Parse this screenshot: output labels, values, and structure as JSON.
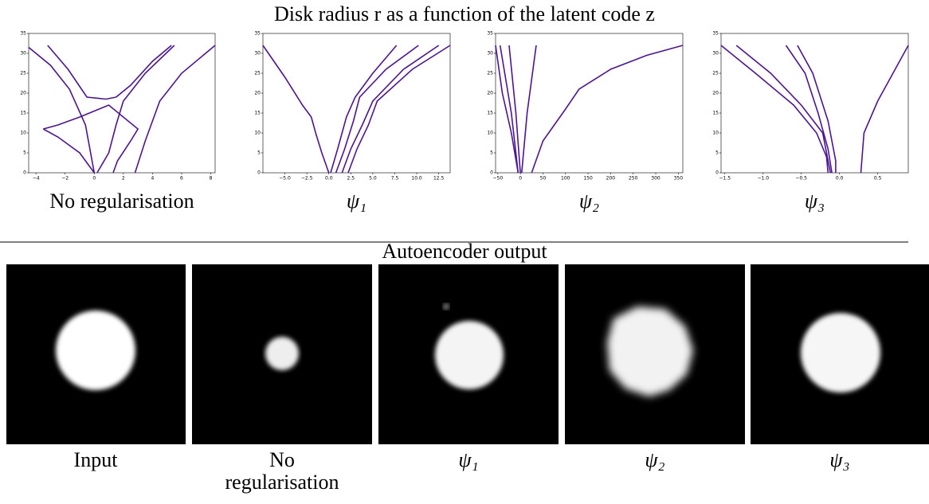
{
  "title": "Disk radius r as a function of the latent code z",
  "chart_data": [
    {
      "type": "line",
      "caption": "No regularisation",
      "color": "#4b1590",
      "xlim": [
        -4.5,
        8.3
      ],
      "ylim": [
        0,
        35
      ],
      "xticks": [
        {
          "value": -4,
          "label": "−4"
        },
        {
          "value": -2,
          "label": "−2"
        },
        0,
        2,
        4,
        6,
        8
      ],
      "yticks": [
        0,
        5,
        10,
        15,
        20,
        25,
        30,
        35
      ],
      "series": [
        {
          "x": [
            -4.5,
            -3,
            -1.7,
            -0.6,
            0
          ],
          "values": [
            31.5,
            27,
            21,
            12,
            0
          ]
        },
        {
          "x": [
            -3.2,
            -1.8,
            -0.5,
            0.8,
            1.5
          ],
          "values": [
            32,
            26,
            19,
            18.5,
            19
          ]
        },
        {
          "x": [
            -3.5,
            -2.5,
            -1,
            1,
            3,
            2.5,
            1.6,
            1.3
          ],
          "values": [
            11,
            12,
            14,
            17,
            11,
            8,
            3,
            0
          ]
        },
        {
          "x": [
            0,
            -1,
            -2.5,
            -3.5
          ],
          "values": [
            0,
            5,
            9,
            11
          ]
        },
        {
          "x": [
            0.2,
            1,
            1.5,
            2,
            3.5,
            5.5
          ],
          "values": [
            0,
            5,
            12,
            18,
            25,
            32
          ]
        },
        {
          "x": [
            1.5,
            2.5,
            4,
            5.3
          ],
          "values": [
            19,
            22,
            28,
            32
          ]
        },
        {
          "x": [
            2.8,
            3.5,
            4.5,
            6,
            8.3
          ],
          "values": [
            0,
            8,
            18,
            25,
            32
          ]
        }
      ]
    },
    {
      "type": "line",
      "caption": "ψ₁",
      "color": "#4b1590",
      "xlim": [
        -7.5,
        13.8
      ],
      "ylim": [
        0,
        35
      ],
      "xticks": [
        {
          "value": -5,
          "label": "−5.0"
        },
        {
          "value": -2.5,
          "label": "−2.5"
        },
        {
          "value": 0,
          "label": "0.0"
        },
        2.5,
        {
          "value": 5,
          "label": "5.0"
        },
        7.5,
        {
          "value": 10,
          "label": "10.0"
        },
        12.5
      ],
      "yticks": [
        0,
        5,
        10,
        15,
        20,
        25,
        30,
        35
      ],
      "series": [
        {
          "x": [
            -7.5,
            -5,
            -3,
            -2,
            -1.5,
            -0.8,
            0
          ],
          "values": [
            32,
            24,
            17,
            14,
            10,
            5,
            0
          ]
        },
        {
          "x": [
            0.2,
            1,
            2,
            3,
            5,
            7.7
          ],
          "values": [
            0,
            6,
            14,
            19,
            25,
            32
          ]
        },
        {
          "x": [
            0.8,
            1.8,
            2.8,
            3.5,
            6.5,
            10.2
          ],
          "values": [
            0,
            6,
            13,
            19,
            26,
            32
          ]
        },
        {
          "x": [
            1.5,
            2.5,
            3.8,
            5,
            8.5,
            12.5
          ],
          "values": [
            0,
            6,
            12,
            18,
            26,
            32
          ]
        },
        {
          "x": [
            2.2,
            3.2,
            4.5,
            5.5,
            9.5,
            13.8
          ],
          "values": [
            0,
            6,
            12,
            18,
            26,
            32
          ]
        }
      ]
    },
    {
      "type": "line",
      "caption": "ψ₂",
      "color": "#4b1590",
      "xlim": [
        -55,
        360
      ],
      "ylim": [
        0,
        35
      ],
      "xticks": [
        {
          "value": -50,
          "label": "−50"
        },
        0,
        50,
        100,
        150,
        200,
        250,
        300,
        350
      ],
      "yticks": [
        0,
        5,
        10,
        15,
        20,
        25,
        30,
        35
      ],
      "series": [
        {
          "x": [
            -55,
            -40,
            -20,
            -5
          ],
          "values": [
            32,
            20,
            10,
            0
          ]
        },
        {
          "x": [
            -45,
            -20,
            -5
          ],
          "values": [
            32,
            15,
            0
          ]
        },
        {
          "x": [
            -25,
            -10,
            0
          ],
          "values": [
            32,
            15,
            0
          ]
        },
        {
          "x": [
            35,
            15,
            3
          ],
          "values": [
            32,
            15,
            0
          ]
        },
        {
          "x": [
            25,
            50,
            100,
            130,
            200,
            280,
            360
          ],
          "values": [
            0,
            8,
            16,
            21,
            26,
            29.5,
            32
          ]
        }
      ]
    },
    {
      "type": "line",
      "caption": "ψ₃",
      "color": "#4b1590",
      "xlim": [
        -1.55,
        0.9
      ],
      "ylim": [
        0,
        35
      ],
      "xticks": [
        {
          "value": -1.5,
          "label": "−1.5"
        },
        {
          "value": -1,
          "label": "−1.0"
        },
        {
          "value": -0.5,
          "label": "−0.5"
        },
        {
          "value": 0,
          "label": "0.0"
        },
        0.5
      ],
      "yticks": [
        0,
        5,
        10,
        15,
        20,
        25,
        30,
        35
      ],
      "series": [
        {
          "x": [
            -1.55,
            -1.1,
            -0.6,
            -0.3,
            -0.17,
            -0.15
          ],
          "values": [
            32,
            25,
            17,
            10,
            4,
            0
          ]
        },
        {
          "x": [
            -1.35,
            -0.9,
            -0.5,
            -0.22,
            -0.12
          ],
          "values": [
            32,
            25,
            17,
            10,
            0
          ]
        },
        {
          "x": [
            -0.7,
            -0.45,
            -0.28,
            -0.15,
            -0.1
          ],
          "values": [
            32,
            25,
            15,
            6,
            0
          ]
        },
        {
          "x": [
            -0.55,
            -0.35,
            -0.15,
            -0.05,
            -0.05
          ],
          "values": [
            32,
            25,
            13,
            3,
            0
          ]
        },
        {
          "x": [
            0.28,
            0.32,
            0.5,
            0.7,
            0.9
          ],
          "values": [
            0,
            10,
            18,
            25,
            32
          ]
        }
      ]
    }
  ],
  "section_title": "Autoencoder output",
  "images": [
    {
      "caption": "Input"
    },
    {
      "caption": [
        "No",
        "regularisation"
      ]
    },
    {
      "caption": "ψ₁"
    },
    {
      "caption": "ψ₂"
    },
    {
      "caption": "ψ₃"
    }
  ]
}
